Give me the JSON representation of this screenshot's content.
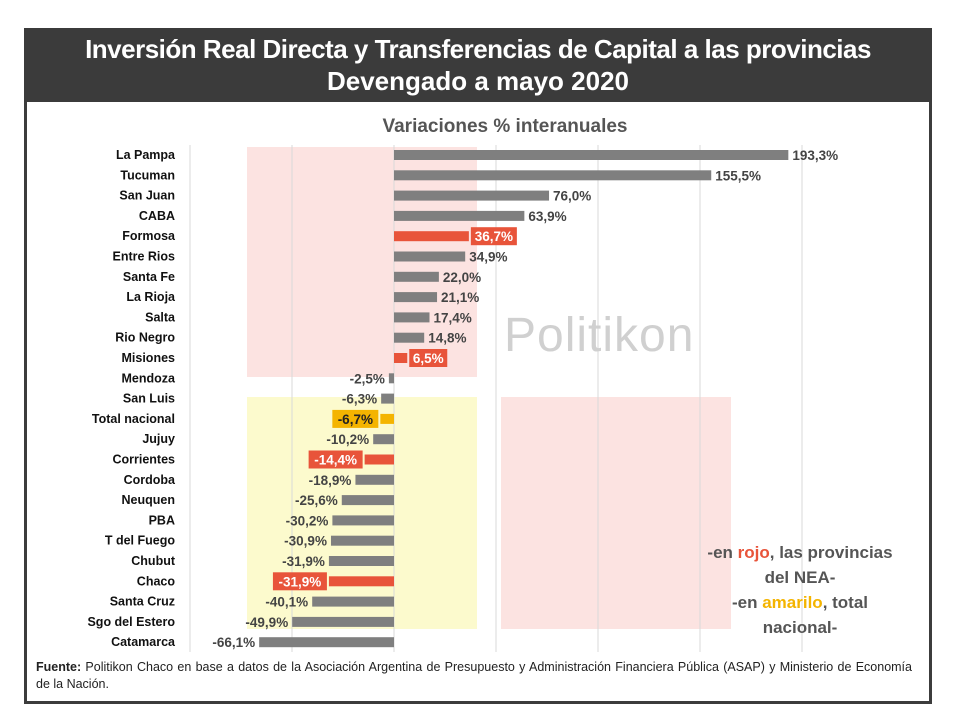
{
  "header": {
    "title_line1": "Inversión Real Directa y Transferencias de Capital a las provincias",
    "title_line2": "Devengado a mayo 2020"
  },
  "watermark": "Politikon",
  "note": {
    "line1_prefix": "-en ",
    "line1_red": "rojo",
    "line1_suffix": ", las provincias",
    "line2": "del NEA-",
    "line3_prefix": "-en ",
    "line3_yellow": "amarilo",
    "line3_suffix": ", total",
    "line4": "nacional-"
  },
  "source": {
    "label": "Fuente:",
    "text": " Politikon Chaco en base a datos de la Asociación Argentina de Presupuesto y Administración Financiera Pública (ASAP) y Ministerio de Economía de la Nación."
  },
  "colors": {
    "default": "#7f7f7f",
    "nea": "#e8543a",
    "total": "#f4b400"
  },
  "chart_data": {
    "type": "bar",
    "orientation": "horizontal",
    "title": "Variaciones % interanuales",
    "xlim": [
      -100,
      200
    ],
    "grid": true,
    "categories": [
      "La Pampa",
      "Tucuman",
      "San Juan",
      "CABA",
      "Formosa",
      "Entre Rios",
      "Santa Fe",
      "La Rioja",
      "Salta",
      "Rio Negro",
      "Misiones",
      "Mendoza",
      "San Luis",
      "Total nacional",
      "Jujuy",
      "Corrientes",
      "Cordoba",
      "Neuquen",
      "PBA",
      "T del Fuego",
      "Chubut",
      "Chaco",
      "Santa Cruz",
      "Sgo del Estero",
      "Catamarca"
    ],
    "values": [
      193.3,
      155.5,
      76.0,
      63.9,
      36.7,
      34.9,
      22.0,
      21.1,
      17.4,
      14.8,
      6.5,
      -2.5,
      -6.3,
      -6.7,
      -10.2,
      -14.4,
      -18.9,
      -25.6,
      -30.2,
      -30.9,
      -31.9,
      -31.9,
      -40.1,
      -49.9,
      -66.1
    ],
    "labels": [
      "193,3%",
      "155,5%",
      "76,0%",
      "63,9%",
      "36,7%",
      "34,9%",
      "22,0%",
      "21,1%",
      "17,4%",
      "14,8%",
      "6,5%",
      "-2,5%",
      "-6,3%",
      "-6,7%",
      "-10,2%",
      "-14,4%",
      "-18,9%",
      "-25,6%",
      "-30,2%",
      "-30,9%",
      "-31,9%",
      "-31,9%",
      "-40,1%",
      "-49,9%",
      "-66,1%"
    ],
    "highlight": [
      "default",
      "default",
      "default",
      "default",
      "nea",
      "default",
      "default",
      "default",
      "default",
      "default",
      "nea",
      "default",
      "default",
      "total",
      "default",
      "nea",
      "default",
      "default",
      "default",
      "default",
      "default",
      "nea",
      "default",
      "default",
      "default"
    ]
  }
}
